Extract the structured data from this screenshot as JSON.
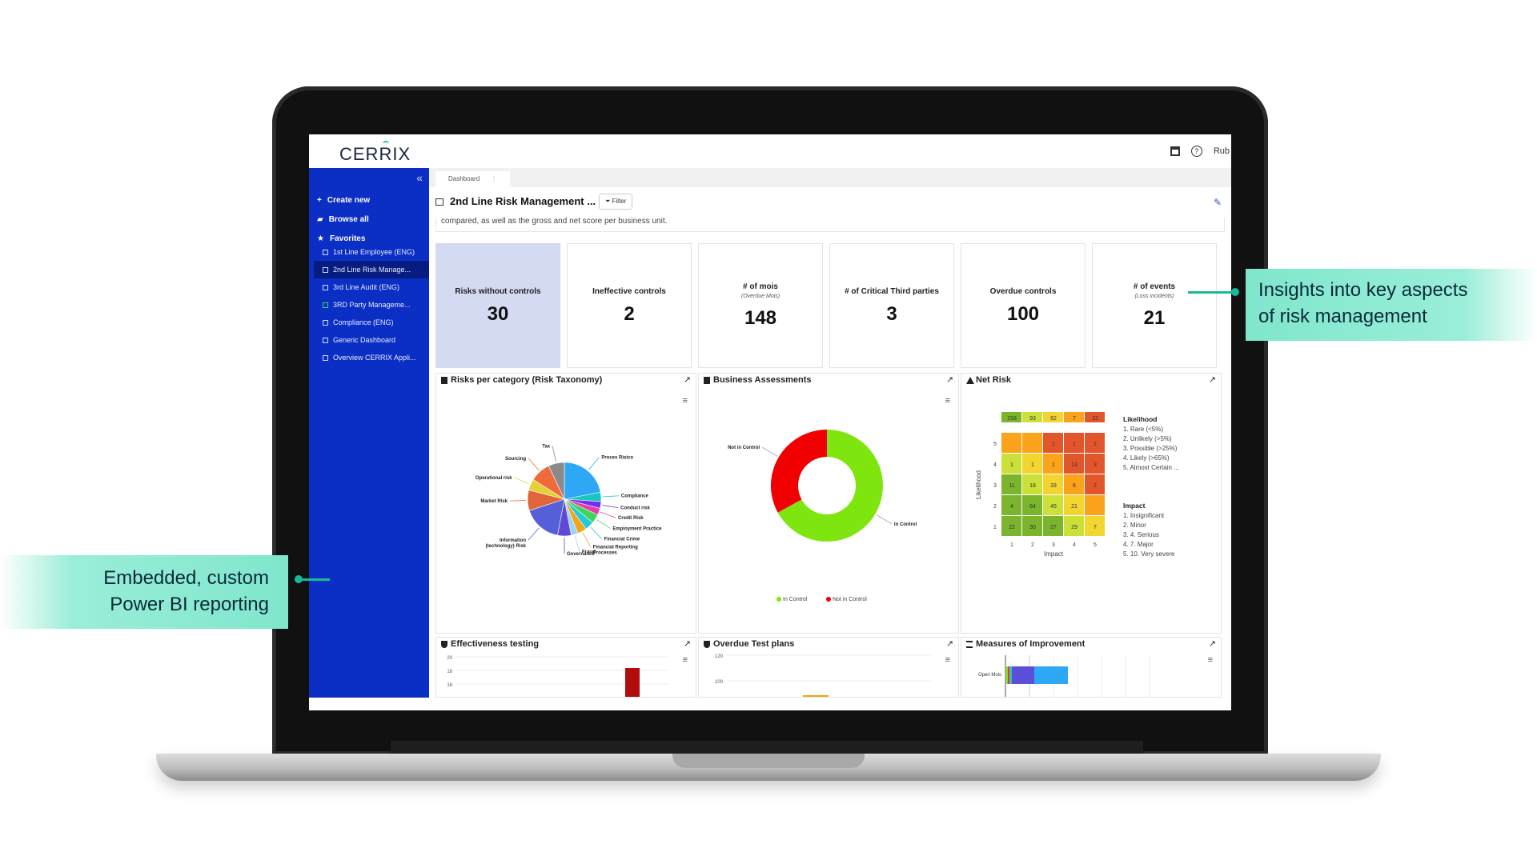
{
  "app": {
    "logo": "CERRIX",
    "user_label": "Rub"
  },
  "sidebar": {
    "collapse_icon": "«",
    "items": [
      {
        "icon": "plus-icon",
        "label": "Create new"
      },
      {
        "icon": "folder-icon",
        "label": "Browse all"
      },
      {
        "icon": "star-icon",
        "label": "Favorites"
      }
    ],
    "favorites": [
      {
        "label": "1st Line Employee (ENG)"
      },
      {
        "label": "2nd Line Risk Manage..."
      },
      {
        "label": "3rd Line Audit (ENG)"
      },
      {
        "label": "3RD Party Manageme..."
      },
      {
        "label": "Compliance (ENG)"
      },
      {
        "label": "Generic Dashboard"
      },
      {
        "label": "Overview CERRIX Appli..."
      }
    ]
  },
  "tabs": [
    {
      "label": "Dashboard",
      "menu": "⋮"
    }
  ],
  "page": {
    "title": "2nd Line Risk Management ...",
    "filter_label": "Filter",
    "description": "compared, as well as the gross and net score per business unit."
  },
  "kpis": [
    {
      "label": "Risks without controls",
      "sub": "",
      "value": "30"
    },
    {
      "label": "Ineffective controls",
      "sub": "",
      "value": "2"
    },
    {
      "label": "# of mois",
      "sub": "(Overdue Mois)",
      "value": "148"
    },
    {
      "label": "# of Critical Third parties",
      "sub": "",
      "value": "3"
    },
    {
      "label": "Overdue controls",
      "sub": "",
      "value": "100"
    },
    {
      "label": "# of events",
      "sub": "(Loss incidents)",
      "value": "21"
    }
  ],
  "panels": {
    "risks_per_category": "Risks per category (Risk Taxonomy)",
    "business_assessments": "Business Assessments",
    "net_risk": "Net Risk",
    "effectiveness_testing": "Effectiveness testing",
    "overdue_test_plans": "Overdue Test plans",
    "measures_of_improvement": "Measures of Improvement"
  },
  "colors": {
    "sidebar": "#0b2ec4",
    "accent": "#18b99a",
    "green": "#7ee60e",
    "red": "#f00000"
  },
  "chart_data": [
    {
      "type": "pie",
      "title": "Risks per category (Risk Taxonomy)",
      "categories": [
        "Proces Risico",
        "Compliance",
        "Conduct risk",
        "Credit Risk",
        "Employment Practice",
        "Financial Crime",
        "Financial Reporting Processes",
        "Fraud",
        "Governance",
        "Information (technology) Risk",
        "Market Risk",
        "Operational risk",
        "Sourcing",
        "Tax"
      ],
      "values": [
        22,
        4,
        3,
        3,
        4,
        4,
        4,
        3,
        6,
        17,
        9,
        5,
        9,
        7
      ],
      "colors": [
        "#2ea8f5",
        "#14c8c0",
        "#7a2cf0",
        "#e83ca8",
        "#3dd65b",
        "#26c9d9",
        "#f2a51d",
        "#9bd5f5",
        "#5f4ad8",
        "#5560d8",
        "#e0663a",
        "#e8cf35",
        "#ef6a3a",
        "#8a8a8a"
      ]
    },
    {
      "type": "pie",
      "title": "Business Assessments",
      "categories": [
        "In Control",
        "Not in Control"
      ],
      "values": [
        67,
        33
      ],
      "colors": [
        "#7ee60e",
        "#f00000"
      ]
    },
    {
      "type": "heatmap",
      "title": "Net Risk",
      "xlabel": "Impact",
      "ylabel": "Likelihood",
      "x": [
        1,
        2,
        3,
        4,
        5
      ],
      "y": [
        5,
        4,
        3,
        2,
        1
      ],
      "column_totals": [
        "158",
        "93",
        "62",
        "7",
        "22"
      ],
      "cells": [
        [
          "",
          "",
          "1",
          "1",
          "2"
        ],
        [
          "1",
          "1",
          "1",
          "13",
          "3"
        ],
        [
          "11",
          "18",
          "33",
          "6",
          "2"
        ],
        [
          "4",
          "64",
          "45",
          "21",
          ""
        ],
        [
          "22",
          "30",
          "27",
          "29",
          "7"
        ]
      ],
      "legend": {
        "likelihood_title": "Likelihood",
        "likelihood": [
          "1. Rare (<5%)",
          "2. Unlikely (>5%)",
          "3. Possible (>25%)",
          "4. Likely (>65%)",
          "5. Almost Certain ..."
        ],
        "impact_title": "Impact",
        "impact": [
          "1. Insignificant",
          "2. Minor",
          "3. 4. Serious",
          "4. 7. Major",
          "5. 10. Very severe"
        ]
      }
    },
    {
      "type": "bar",
      "title": "Effectiveness testing",
      "yticks": [
        "20",
        "18",
        "16"
      ]
    },
    {
      "type": "bar",
      "title": "Overdue Test plans",
      "yticks": [
        "120",
        "100"
      ]
    },
    {
      "type": "bar",
      "title": "Measures of Improvement",
      "categories": [
        "Open Mois"
      ]
    }
  ],
  "callouts": {
    "left": [
      "Embedded, custom",
      "Power BI reporting"
    ],
    "right": [
      "Insights into key aspects",
      "of risk management"
    ]
  }
}
